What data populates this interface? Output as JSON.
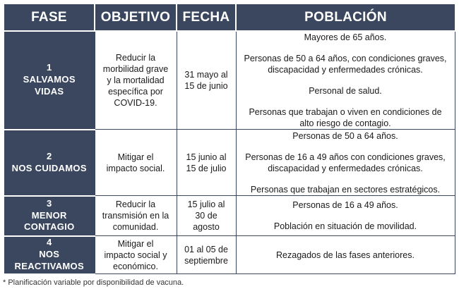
{
  "headers": {
    "fase": "FASE",
    "objetivo": "OBJETIVO",
    "fecha": "FECHA",
    "poblacion": "POBLACIÓN"
  },
  "rows": [
    {
      "num": "1",
      "name_l1": "SALVAMOS",
      "name_l2": "VIDAS",
      "objetivo_l1": "Reducir la",
      "objetivo_l2": "morbilidad grave",
      "objetivo_l3": "y la mortalidad",
      "objetivo_l4": "específica por",
      "objetivo_l5": "COVID-19.",
      "fecha_l1": "31 mayo al",
      "fecha_l2": "15 de junio",
      "poblacion": [
        "Mayores de 65 años.",
        "Personas de 50 a 64 años, con condiciones graves, discapacidad y enfermedades crónicas.",
        "Personal de salud.",
        "Personas que trabajan o viven en condiciones de alto riesgo de contagio."
      ]
    },
    {
      "num": "2",
      "name_l1": "NOS CUIDAMOS",
      "objetivo_l1": "Mitigar el",
      "objetivo_l2": "impacto social.",
      "fecha_l1": "15 junio al",
      "fecha_l2": "15 de julio",
      "poblacion": [
        "Personas de 50 a 64 años.",
        "Personas de 16 a 49 años con condiciones graves, discapacidad y enfermedades crónicas.",
        "Personas que trabajan en sectores estratégicos."
      ]
    },
    {
      "num": "3",
      "name_l1": "MENOR",
      "name_l2": "CONTAGIO",
      "objetivo_l1": "Reducir la",
      "objetivo_l2": "transmisión en la",
      "objetivo_l3": "comunidad.",
      "fecha_l1": "15 julio al",
      "fecha_l2": "30 de",
      "fecha_l3": "agosto",
      "poblacion": [
        "Personas de 16 a 49 años.",
        "Población en situación de movilidad."
      ]
    },
    {
      "num": "4",
      "name_l1": "NOS",
      "name_l2": "REACTIVAMOS",
      "objetivo_l1": "Mitigar el",
      "objetivo_l2": "impacto social y",
      "objetivo_l3": "económico.",
      "fecha_l1": "01 al 05 de",
      "fecha_l2": "septiembre",
      "poblacion": [
        "Rezagados de las fases anteriores."
      ]
    }
  ],
  "footnote": "* Planificación variable por disponibilidad de vacuna.",
  "colors": {
    "header_bg": "#3a475e",
    "header_text": "#ffffff"
  }
}
